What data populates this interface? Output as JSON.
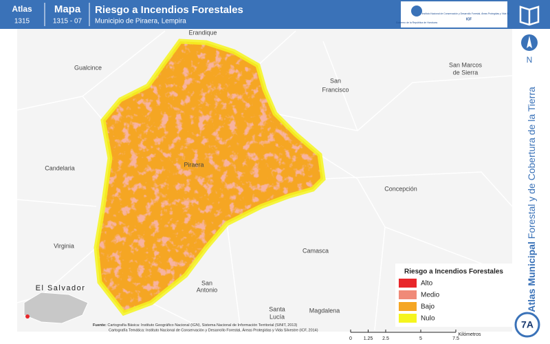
{
  "header": {
    "atlas_label": "Atlas",
    "atlas_number": "1315",
    "map_label": "Mapa",
    "map_number": "1315 - 07",
    "title": "Riesgo a Incendios Forestales",
    "subtitle": "Municipio de Piraera, Lempira"
  },
  "logos": {
    "government": "Gobierno de la República de Honduras",
    "institute": "Instituto Nacional de Conservación y Desarrollo Forestal, Áreas Protegidas y Vida Silvestre",
    "institute_short": "ICF"
  },
  "sidebar": {
    "north": "N",
    "series_bold": "Atlas Municipal",
    "series_rest": "Forestal y de Cobertura de la Tierra",
    "badge": "7A"
  },
  "places": [
    {
      "label": "Erandique"
    },
    {
      "label": "Gualcince"
    },
    {
      "label": "San"
    },
    {
      "label": "Francisco"
    },
    {
      "label": "San Marcos"
    },
    {
      "label": "de Sierra"
    },
    {
      "label": "Candelaria"
    },
    {
      "label": "Piraera"
    },
    {
      "label": "Concepción"
    },
    {
      "label": "Virginia"
    },
    {
      "label": "Camasca"
    },
    {
      "label": "San"
    },
    {
      "label": "Antonio"
    },
    {
      "label": "Santa"
    },
    {
      "label": "Lucía"
    },
    {
      "label": "Magdalena"
    },
    {
      "label": "El Salvador"
    }
  ],
  "legend": {
    "title": "Riesgo a Incendios Forestales",
    "items": [
      {
        "label": "Alto",
        "color": "#e8262a"
      },
      {
        "label": "Medio",
        "color": "#f08a78"
      },
      {
        "label": "Bajo",
        "color": "#f5a623"
      },
      {
        "label": "Nulo",
        "color": "#f5f51e"
      }
    ]
  },
  "source": {
    "label": "Fuente:",
    "lines": [
      "Cartografía Básica: Instituto Geográfico Nacional (IGN), Sistema Nacional de Información Territorial (SINIT, 2013)",
      "Cartografía Temática: Instituto Nacional de Conservación y Desarrollo Forestal, Áreas Protegidas y Vida Silvestre (ICF, 2014)"
    ]
  },
  "scale": {
    "ticks": [
      0,
      1.25,
      2.5,
      5,
      7.5
    ],
    "unit": "Kilómetros"
  }
}
